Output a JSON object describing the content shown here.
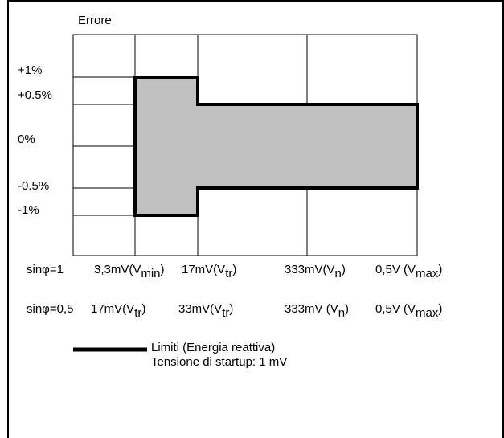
{
  "y_title": "Errore",
  "y_labels": [
    "+1%",
    "+0.5%",
    "0%",
    "-0.5%",
    "-1%"
  ],
  "rows": [
    {
      "prefix": "sinφ=1",
      "items": [
        {
          "main": "3,3mV(V",
          "sub": "min",
          "close": ")"
        },
        {
          "main": "17mV(V",
          "sub": "tr",
          "close": ")"
        },
        {
          "main": "333mV(V",
          "sub": "n",
          "close": ")"
        },
        {
          "main": "0,5V (V",
          "sub": "max",
          "close": ")"
        }
      ]
    },
    {
      "prefix": "sinφ=0,5",
      "items": [
        {
          "main": "17mV(V",
          "sub": "tr",
          "close": ")"
        },
        {
          "main": "33mV(V",
          "sub": "tr",
          "close": ")"
        },
        {
          "main": "333mV (V",
          "sub": "n",
          "close": ")"
        },
        {
          "main": "0,5V (V",
          "sub": "max",
          "close": ")"
        }
      ]
    }
  ],
  "legend": {
    "line1": "Limiti (Energia reattiva)",
    "line2": "Tensione di startup: 1 mV"
  },
  "colors": {
    "fill": "#c0c0c0",
    "line": "#000000"
  }
}
